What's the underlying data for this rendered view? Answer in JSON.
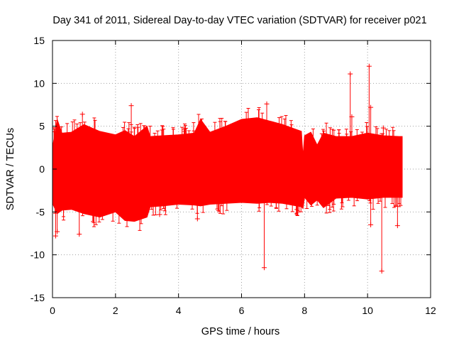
{
  "chart_data": {
    "type": "scatter",
    "title": "Day 341 of 2011, Sidereal Day-to-day VTEC variation (SDTVAR) for receiver p021",
    "xlabel": "GPS time / hours",
    "ylabel": "SDTVAR / TECUs",
    "xlim": [
      0,
      12
    ],
    "ylim": [
      -15,
      15
    ],
    "xticks": [
      0,
      2,
      4,
      6,
      8,
      10,
      12
    ],
    "yticks": [
      -15,
      -10,
      -5,
      0,
      5,
      10,
      15
    ],
    "grid": true,
    "marker": "+",
    "series": [
      {
        "name": "SDTVAR",
        "color": "#ff0000",
        "envelope": {
          "x": [
            0.0,
            0.15,
            0.3,
            0.6,
            1.0,
            1.5,
            2.0,
            2.3,
            2.6,
            3.0,
            3.1,
            3.5,
            4.0,
            4.5,
            4.7,
            5.0,
            5.5,
            6.0,
            6.5,
            6.9,
            7.3,
            7.9,
            7.95,
            8.0,
            8.2,
            8.4,
            8.6,
            9.0,
            9.5,
            10.0,
            10.5,
            11.0,
            11.1
          ],
          "upper": [
            2.5,
            5.8,
            4.2,
            4.3,
            5.2,
            4.4,
            4.0,
            4.5,
            3.8,
            5.0,
            3.8,
            3.9,
            4.0,
            4.2,
            5.8,
            4.3,
            5.0,
            5.8,
            6.0,
            5.6,
            5.2,
            4.4,
            1.5,
            3.9,
            4.3,
            2.8,
            4.2,
            3.8,
            3.8,
            4.2,
            3.9,
            3.8,
            3.8
          ],
          "lower": [
            -4.0,
            -5.2,
            -4.8,
            -4.7,
            -5.2,
            -5.6,
            -5.0,
            -6.0,
            -6.1,
            -5.6,
            -4.4,
            -4.3,
            -4.1,
            -4.2,
            -4.3,
            -4.1,
            -4.0,
            -3.9,
            -4.0,
            -3.9,
            -4.0,
            -4.4,
            -4.6,
            -3.3,
            -4.2,
            -3.6,
            -4.5,
            -3.4,
            -3.3,
            -3.5,
            -3.3,
            -3.3,
            -3.3
          ]
        },
        "outliers": [
          {
            "x": 0.1,
            "y": -7.8
          },
          {
            "x": 0.15,
            "y": -7.3
          },
          {
            "x": 0.85,
            "y": -7.6
          },
          {
            "x": 0.95,
            "y": 6.4
          },
          {
            "x": 2.5,
            "y": 7.4
          },
          {
            "x": 3.4,
            "y": -5.3
          },
          {
            "x": 4.6,
            "y": -5.8
          },
          {
            "x": 6.72,
            "y": -11.5
          },
          {
            "x": 6.8,
            "y": 7.6
          },
          {
            "x": 9.45,
            "y": 11.1
          },
          {
            "x": 9.5,
            "y": 6.1
          },
          {
            "x": 10.05,
            "y": 12.0
          },
          {
            "x": 10.1,
            "y": 7.2
          },
          {
            "x": 10.1,
            "y": -6.5
          },
          {
            "x": 10.45,
            "y": -11.9
          },
          {
            "x": 10.5,
            "y": 4.8
          },
          {
            "x": 10.95,
            "y": -6.6
          }
        ]
      }
    ]
  }
}
